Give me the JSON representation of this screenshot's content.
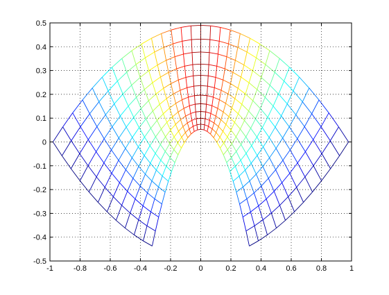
{
  "chart_data": {
    "type": "mesh",
    "xlim": [
      -1,
      1
    ],
    "ylim": [
      -0.5,
      0.5
    ],
    "xticks": [
      -1,
      -0.8,
      -0.6,
      -0.4,
      -0.2,
      0,
      0.2,
      0.4,
      0.6,
      0.8,
      1
    ],
    "yticks": [
      -0.5,
      -0.4,
      -0.3,
      -0.2,
      -0.1,
      0,
      0.1,
      0.2,
      0.3,
      0.4,
      0.5
    ],
    "grid": true
  }
}
